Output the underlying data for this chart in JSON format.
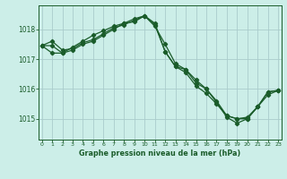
{
  "title": "Graphe pression niveau de la mer (hPa)",
  "bg_color": "#cceee8",
  "grid_color": "#aacccc",
  "line_color": "#1a5c2a",
  "marker": "D",
  "marker_size": 2.2,
  "lw": 0.9,
  "x_ticks": [
    0,
    1,
    2,
    3,
    4,
    5,
    6,
    7,
    8,
    9,
    10,
    11,
    12,
    13,
    14,
    15,
    16,
    17,
    18,
    19,
    20,
    21,
    22,
    23
  ],
  "y_ticks": [
    1015,
    1016,
    1017,
    1018
  ],
  "ylim": [
    1014.3,
    1018.8
  ],
  "xlim": [
    -0.3,
    23.3
  ],
  "series1": {
    "x": [
      0,
      1,
      2,
      3,
      4,
      5,
      6,
      7,
      8,
      9,
      10,
      11,
      12,
      13,
      14,
      15,
      16,
      17,
      18,
      19,
      20,
      21,
      22,
      23
    ],
    "y": [
      1017.45,
      1017.6,
      1017.3,
      1017.35,
      1017.55,
      1017.65,
      1017.85,
      1018.05,
      1018.15,
      1018.3,
      1018.45,
      1018.15,
      1017.25,
      1016.75,
      1016.55,
      1016.1,
      1015.85,
      1015.5,
      1015.1,
      1015.0,
      1015.0,
      1015.4,
      1015.9,
      1015.95
    ]
  },
  "series2": {
    "x": [
      0,
      1,
      2,
      3,
      4,
      5,
      6,
      7,
      8,
      9,
      10,
      11,
      12,
      13,
      14,
      15,
      16,
      17,
      18,
      19,
      20,
      21,
      22,
      23
    ],
    "y": [
      1017.45,
      1017.2,
      1017.2,
      1017.4,
      1017.6,
      1017.8,
      1017.95,
      1018.1,
      1018.2,
      1018.25,
      1018.45,
      1018.1,
      1017.5,
      1016.85,
      1016.65,
      1016.3,
      1016.0,
      1015.55,
      1015.05,
      1014.85,
      1015.0,
      1015.4,
      1015.8,
      1015.95
    ]
  },
  "series3": {
    "x": [
      0,
      1,
      2,
      3,
      4,
      5,
      6,
      7,
      8,
      9,
      10,
      11,
      12,
      13,
      14,
      15,
      16,
      17,
      18,
      19,
      20,
      21,
      22,
      23
    ],
    "y": [
      1017.45,
      1017.45,
      1017.2,
      1017.3,
      1017.5,
      1017.6,
      1017.8,
      1018.0,
      1018.2,
      1018.35,
      1018.45,
      1018.2,
      1017.25,
      1016.75,
      1016.65,
      1016.2,
      1016.0,
      1015.6,
      1015.1,
      1015.0,
      1015.05,
      1015.4,
      1015.9,
      1015.95
    ]
  }
}
